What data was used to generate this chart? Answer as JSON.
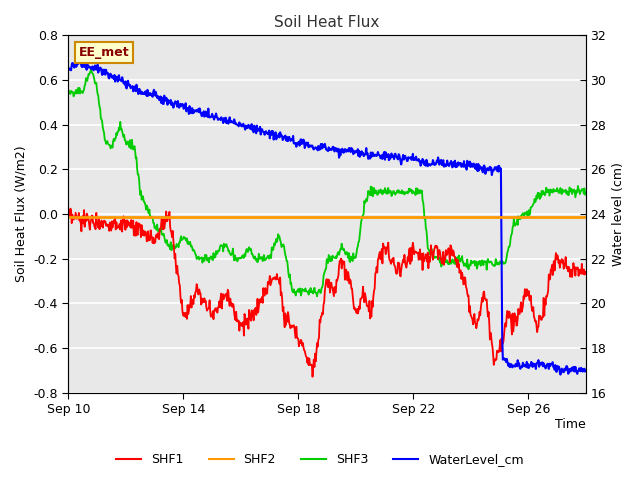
{
  "title": "Soil Heat Flux",
  "ylabel_left": "Soil Heat Flux (W/m2)",
  "ylabel_right": "Water level (cm)",
  "xlabel": "Time",
  "ylim_left": [
    -0.8,
    0.8
  ],
  "ylim_right": [
    16,
    32
  ],
  "fig_bg_color": "#ffffff",
  "plot_bg_color": "#e8e8e8",
  "annotation_text": "EE_met",
  "annotation_bg": "#ffffcc",
  "annotation_border": "#cc8800",
  "annotation_text_color": "#880000",
  "legend_entries": [
    "SHF1",
    "SHF2",
    "SHF3",
    "WaterLevel_cm"
  ],
  "line_colors": {
    "SHF1": "#ff0000",
    "SHF2": "#ff9900",
    "SHF3": "#00cc00",
    "WaterLevel_cm": "#0000ff"
  },
  "xtick_labels": [
    "Sep 10",
    "Sep 14",
    "Sep 18",
    "Sep 22",
    "Sep 26"
  ],
  "xtick_positions": [
    0,
    4,
    8,
    12,
    16
  ],
  "xlim": [
    0,
    18
  ],
  "grid_color": "#ffffff",
  "grid_linewidth": 1.2,
  "right_ticks": [
    16,
    18,
    20,
    22,
    24,
    26,
    28,
    30,
    32
  ],
  "left_ticks": [
    -0.8,
    -0.6,
    -0.4,
    -0.2,
    0.0,
    0.2,
    0.4,
    0.6,
    0.8
  ]
}
